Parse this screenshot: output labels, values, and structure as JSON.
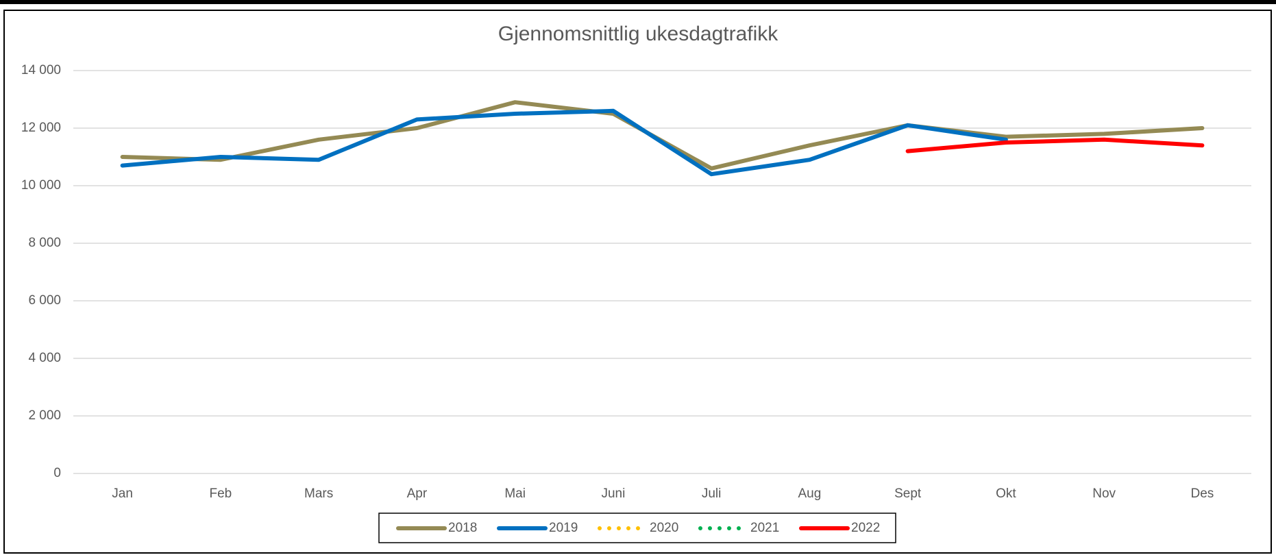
{
  "chart_data": {
    "type": "line",
    "title": "Gjennomsnittlig ukesdagtrafikk",
    "categories": [
      "Jan",
      "Feb",
      "Mars",
      "Apr",
      "Mai",
      "Juni",
      "Juli",
      "Aug",
      "Sept",
      "Okt",
      "Nov",
      "Des"
    ],
    "series": [
      {
        "name": "2018",
        "color": "#948a54",
        "style": "solid",
        "values": [
          11000,
          10900,
          11600,
          12000,
          12900,
          12500,
          10600,
          11400,
          12100,
          11700,
          11800,
          12000
        ]
      },
      {
        "name": "2019",
        "color": "#0070c0",
        "style": "solid",
        "values": [
          10700,
          11000,
          10900,
          12300,
          12500,
          12600,
          10400,
          10900,
          12100,
          11600,
          null,
          null
        ]
      },
      {
        "name": "2020",
        "color": "#ffc000",
        "style": "dotted",
        "values": [
          null,
          null,
          null,
          null,
          null,
          null,
          null,
          null,
          null,
          null,
          null,
          null
        ]
      },
      {
        "name": "2021",
        "color": "#00b050",
        "style": "dotted",
        "values": [
          null,
          null,
          null,
          null,
          null,
          null,
          null,
          null,
          null,
          null,
          null,
          null
        ]
      },
      {
        "name": "2022",
        "color": "#ff0000",
        "style": "solid",
        "values": [
          null,
          null,
          null,
          null,
          null,
          null,
          null,
          null,
          11200,
          11500,
          11600,
          11400
        ]
      }
    ],
    "ylim": [
      0,
      14000
    ],
    "yticks": [
      0,
      {
        "value": 2000,
        "label": "2 000"
      },
      {
        "value": 4000,
        "label": "4 000"
      },
      {
        "value": 6000,
        "label": "6 000"
      },
      {
        "value": 8000,
        "label": "8 000"
      },
      {
        "value": 10000,
        "label": "10 000"
      },
      {
        "value": 12000,
        "label": "12 000"
      },
      {
        "value": 14000,
        "label": "14 000"
      }
    ],
    "grid": true,
    "legend": "bottom"
  }
}
